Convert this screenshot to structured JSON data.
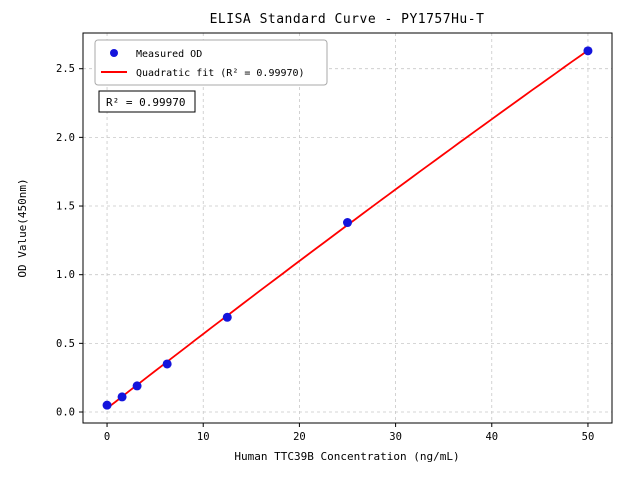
{
  "chart_data": {
    "type": "scatter",
    "title": "ELISA Standard Curve - PY1757Hu-T",
    "xlabel": "Human TTC39B Concentration (ng/mL)",
    "ylabel": "OD Value(450nm)",
    "xlim": [
      -2.5,
      52.5
    ],
    "ylim": [
      -0.08,
      2.76
    ],
    "x_ticks": [
      0,
      10,
      20,
      30,
      40,
      50
    ],
    "y_ticks": [
      0.0,
      0.5,
      1.0,
      1.5,
      2.0,
      2.5
    ],
    "grid": "dashed",
    "grid_color": "#c8c8c8",
    "legend_position": "upper-left",
    "annotation": "R² = 0.99970",
    "series": [
      {
        "name": "Measured OD",
        "type": "scatter",
        "color": "#1414dc",
        "x": [
          0,
          1.563,
          3.125,
          6.25,
          12.5,
          25,
          50
        ],
        "y": [
          0.05,
          0.11,
          0.19,
          0.35,
          0.69,
          1.38,
          2.63
        ]
      },
      {
        "name": "Quadratic fit (R² = 0.99970)",
        "type": "line",
        "color": "#ff0000"
      }
    ]
  }
}
